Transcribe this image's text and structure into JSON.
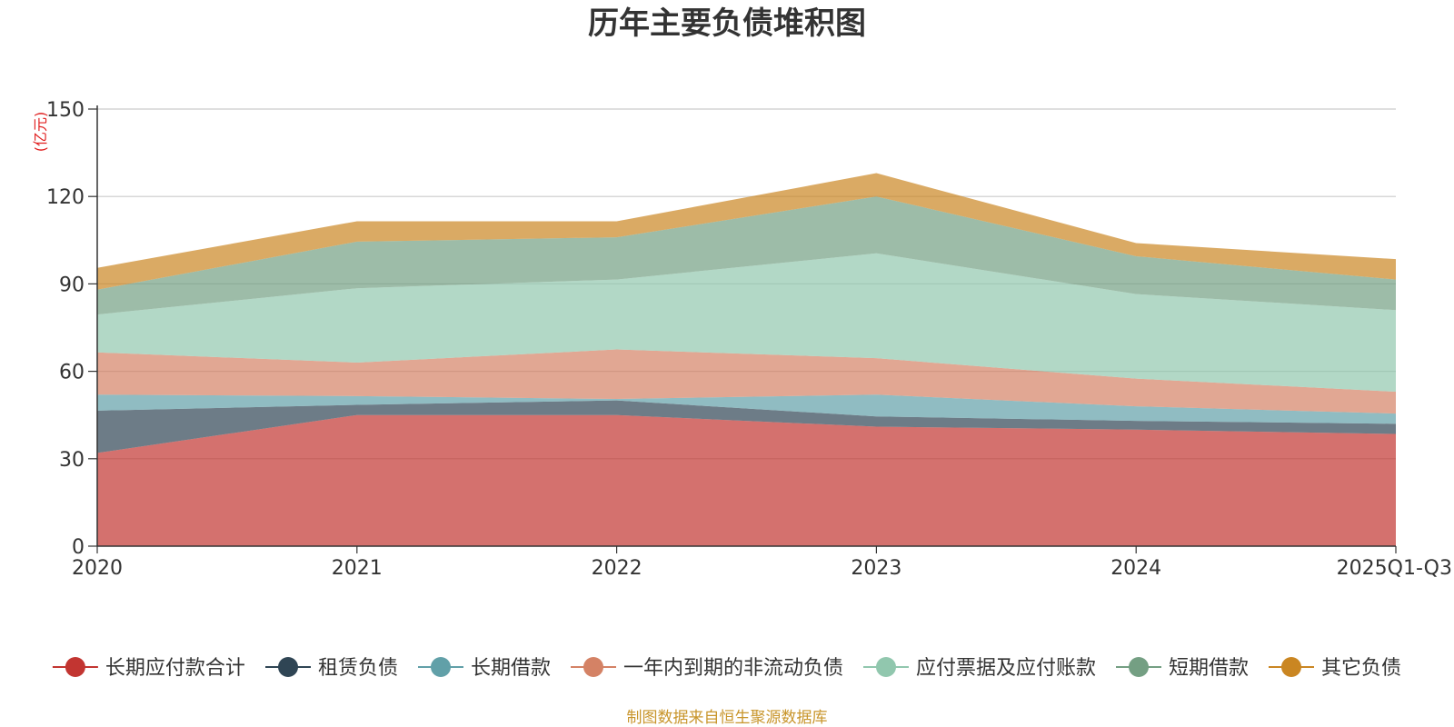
{
  "chart_data": {
    "type": "area",
    "stacked": true,
    "title": "历年主要负债堆积图",
    "unit_label": "(亿元)",
    "categories": [
      "2020",
      "2021",
      "2022",
      "2023",
      "2024",
      "2025Q1-Q3"
    ],
    "ylim": [
      0,
      150
    ],
    "yticks": [
      0,
      30,
      60,
      90,
      120,
      150
    ],
    "grid": true,
    "legend_position": "bottom",
    "series": [
      {
        "name": "长期应付款合计",
        "color": "#c23531",
        "values": [
          32,
          45,
          45,
          41,
          40,
          38.5
        ]
      },
      {
        "name": "租赁负债",
        "color": "#2f4554",
        "values": [
          14.5,
          3.5,
          5,
          3.5,
          3,
          3.5
        ]
      },
      {
        "name": "长期借款",
        "color": "#61a0a8",
        "values": [
          5.5,
          3,
          0.5,
          7.5,
          5,
          3.5
        ]
      },
      {
        "name": "一年内到期的非流动负债",
        "color": "#d48265",
        "values": [
          14.5,
          11.5,
          17,
          12.5,
          9.5,
          7.5
        ]
      },
      {
        "name": "应付票据及应付账款",
        "color": "#91c7ae",
        "values": [
          13,
          25.5,
          24,
          36,
          29,
          28
        ]
      },
      {
        "name": "短期借款",
        "color": "#749f83",
        "values": [
          8.5,
          16,
          14.5,
          19.5,
          13,
          10.5
        ]
      },
      {
        "name": "其它负债",
        "color": "#ca8622",
        "values": [
          7.5,
          7,
          5.5,
          8,
          4.5,
          7
        ]
      }
    ]
  },
  "footer": {
    "source": "制图数据来自恒生聚源数据库"
  }
}
